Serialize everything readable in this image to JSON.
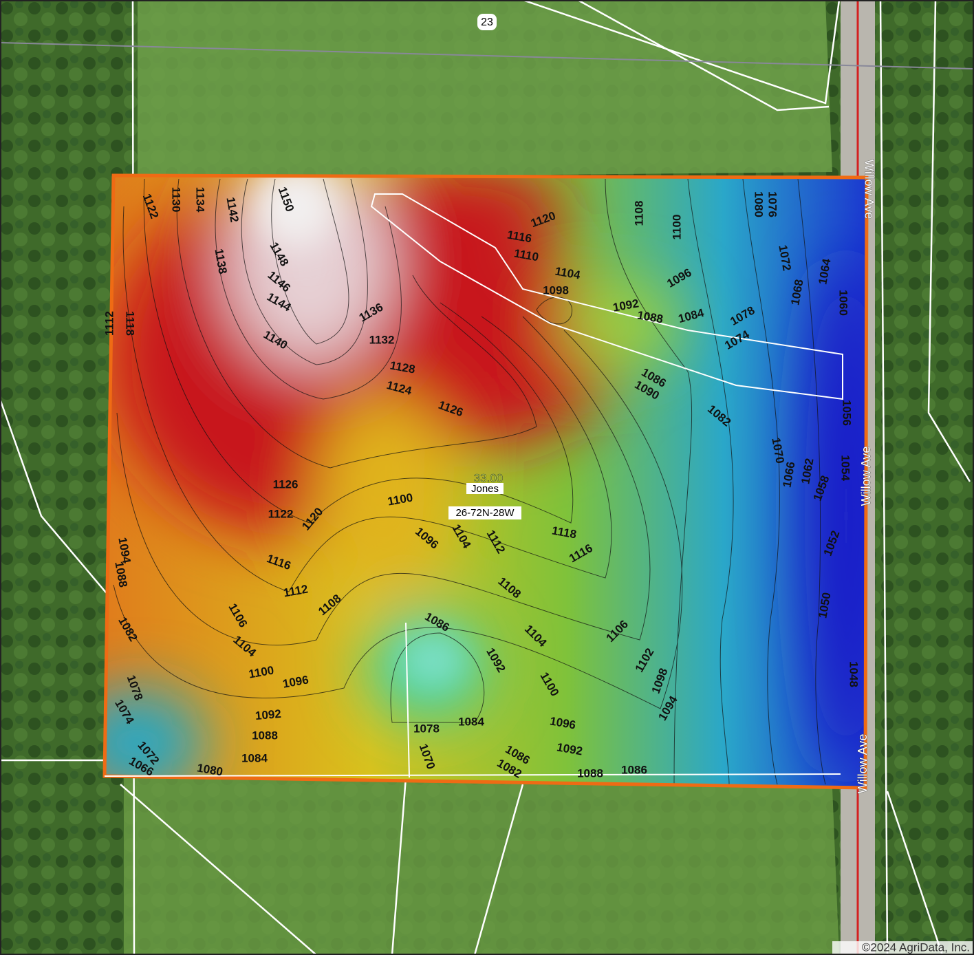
{
  "map": {
    "labels": {
      "section": "23",
      "roads": [
        "Willow Ave",
        "Willow Ave",
        "Willow Ave"
      ],
      "acres": "33.00",
      "owner": "Jones",
      "legal": "26-72N-28W",
      "copyright": "©2024 AgriData, Inc."
    },
    "contour_labels": [
      1150,
      1148,
      1146,
      1144,
      1142,
      1140,
      1138,
      1136,
      1134,
      1132,
      1130,
      1128,
      1126,
      1124,
      1122,
      1120,
      1118,
      1116,
      1112,
      1110,
      1108,
      1104,
      1100,
      1098,
      1096,
      1092,
      1088,
      1084,
      1080,
      1076,
      1072,
      1068,
      1064,
      1060,
      1056,
      1054,
      1052,
      1050,
      1048,
      1062,
      1058,
      1066,
      1070,
      1074,
      1078,
      1082,
      1086,
      1090,
      1094,
      1088,
      1082,
      1078,
      1074,
      1072,
      1066,
      1080,
      1084,
      1088,
      1092,
      1096,
      1100,
      1104,
      1106,
      1108,
      1112,
      1116,
      1120,
      1122,
      1126,
      1070,
      1078,
      1084,
      1086,
      1092,
      1096,
      1100,
      1104,
      1108,
      1112,
      1116,
      1118,
      1106,
      1102,
      1098,
      1094,
      1086,
      1088,
      1092,
      1096,
      1100,
      1104,
      1082,
      1086
    ]
  }
}
